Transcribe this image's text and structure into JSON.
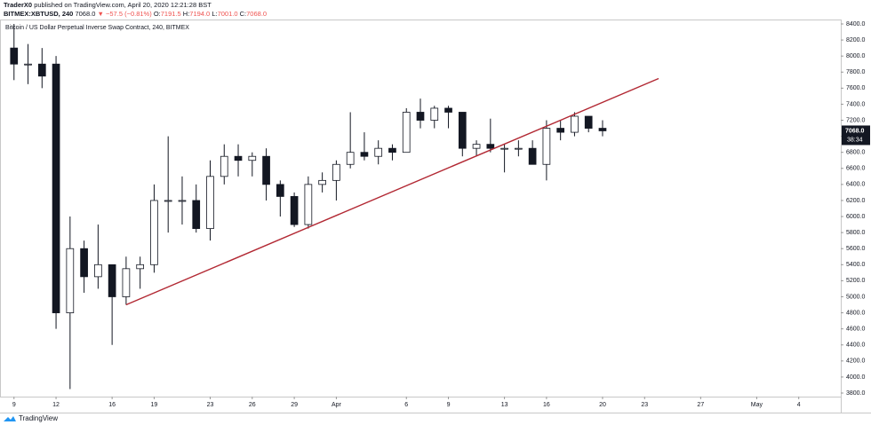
{
  "header": {
    "author": "TraderX0",
    "published": "published on TradingView.com, April 20, 2020 12:21:28 BST",
    "symbol": "BITMEX:XBTUSD, 240",
    "last": "7068.0",
    "change": "▼ −57.5 (−0.81%)",
    "open_label": "O:",
    "open": "7191.5",
    "high_label": "H:",
    "high": "7194.0",
    "low_label": "L:",
    "low": "7001.0",
    "close_label": "C:",
    "close": "7068.0"
  },
  "footer": {
    "brand": "TradingView"
  },
  "chart_data": {
    "type": "candlestick",
    "legend_title": "Bitcoin / US Dollar Perpetual Inverse Swap Contract, 240, BITMEX",
    "x": [
      "2020-03-09",
      "2020-03-10",
      "2020-03-11",
      "2020-03-12",
      "2020-03-13",
      "2020-03-14",
      "2020-03-15",
      "2020-03-16",
      "2020-03-17",
      "2020-03-18",
      "2020-03-19",
      "2020-03-20",
      "2020-03-21",
      "2020-03-22",
      "2020-03-23",
      "2020-03-24",
      "2020-03-25",
      "2020-03-26",
      "2020-03-27",
      "2020-03-28",
      "2020-03-29",
      "2020-03-30",
      "2020-03-31",
      "2020-04-01",
      "2020-04-02",
      "2020-04-03",
      "2020-04-04",
      "2020-04-05",
      "2020-04-06",
      "2020-04-07",
      "2020-04-08",
      "2020-04-09",
      "2020-04-10",
      "2020-04-11",
      "2020-04-12",
      "2020-04-13",
      "2020-04-14",
      "2020-04-15",
      "2020-04-16",
      "2020-04-17",
      "2020-04-18",
      "2020-04-19",
      "2020-04-20"
    ],
    "open": [
      8100,
      7900,
      7900,
      7900,
      4800,
      5600,
      5250,
      5400,
      5000,
      5350,
      5400,
      6200,
      6200,
      6200,
      5850,
      6500,
      6750,
      6700,
      6750,
      6400,
      6250,
      5900,
      6400,
      6450,
      6650,
      6800,
      6750,
      6850,
      6800,
      7300,
      7200,
      7350,
      7300,
      6850,
      6900,
      6850,
      6850,
      6850,
      6650,
      7100,
      7050,
      7250,
      7100
    ],
    "high": [
      8400,
      8150,
      8100,
      8000,
      6000,
      5700,
      5900,
      5400,
      5500,
      5500,
      6400,
      7000,
      6500,
      6400,
      6700,
      6900,
      6900,
      6800,
      6850,
      6450,
      6300,
      6500,
      6550,
      6700,
      7300,
      7050,
      6950,
      6900,
      7350,
      7470,
      7380,
      7380,
      7300,
      6950,
      7220,
      6900,
      6950,
      6950,
      7200,
      7200,
      7300,
      7250,
      7200
    ],
    "low": [
      7700,
      7650,
      7600,
      4600,
      3850,
      5050,
      5100,
      4400,
      4900,
      5100,
      5300,
      5800,
      5900,
      5800,
      5700,
      6400,
      6500,
      6500,
      6200,
      6000,
      5870,
      5850,
      6300,
      6200,
      6600,
      6700,
      6650,
      6700,
      6800,
      7100,
      7100,
      7100,
      6750,
      6750,
      6800,
      6550,
      6750,
      6650,
      6450,
      6950,
      7000,
      7050,
      7000
    ],
    "close": [
      7900,
      7900,
      7750,
      4800,
      5600,
      5250,
      5400,
      5000,
      5350,
      5400,
      6200,
      6200,
      6200,
      5850,
      6500,
      6750,
      6700,
      6750,
      6400,
      6250,
      5900,
      6400,
      6450,
      6650,
      6800,
      6750,
      6850,
      6800,
      7300,
      7200,
      7350,
      7300,
      6850,
      6900,
      6850,
      6850,
      6850,
      6650,
      7100,
      7050,
      7250,
      7100,
      7068
    ],
    "up_color": "#ffffff",
    "down_color": "#131722",
    "outline_color": "#131722",
    "trendline": {
      "x": [
        "2020-03-17",
        "2020-04-24"
      ],
      "values": [
        4900,
        7720
      ],
      "color": "#b22833"
    },
    "last_price_label": "7068.0",
    "countdown_label": "38:34",
    "xlim": [
      "2020-03-08",
      "2020-05-07"
    ],
    "xticks": [
      {
        "value": "2020-03-09",
        "label": "9"
      },
      {
        "value": "2020-03-12",
        "label": "12"
      },
      {
        "value": "2020-03-16",
        "label": "16"
      },
      {
        "value": "2020-03-19",
        "label": "19"
      },
      {
        "value": "2020-03-23",
        "label": "23"
      },
      {
        "value": "2020-03-26",
        "label": "26"
      },
      {
        "value": "2020-03-29",
        "label": "29"
      },
      {
        "value": "2020-04-01",
        "label": "Apr"
      },
      {
        "value": "2020-04-06",
        "label": "6"
      },
      {
        "value": "2020-04-09",
        "label": "9"
      },
      {
        "value": "2020-04-13",
        "label": "13"
      },
      {
        "value": "2020-04-16",
        "label": "16"
      },
      {
        "value": "2020-04-20",
        "label": "20"
      },
      {
        "value": "2020-04-23",
        "label": "23"
      },
      {
        "value": "2020-04-27",
        "label": "27"
      },
      {
        "value": "2020-05-01",
        "label": "May"
      },
      {
        "value": "2020-05-04",
        "label": "4"
      }
    ],
    "ylim": [
      3800,
      8400
    ],
    "yticks": [
      {
        "value": 3800,
        "label": "3800.0"
      },
      {
        "value": 4000,
        "label": "4000.0"
      },
      {
        "value": 4200,
        "label": "4200.0"
      },
      {
        "value": 4400,
        "label": "4400.0"
      },
      {
        "value": 4600,
        "label": "4600.0"
      },
      {
        "value": 4800,
        "label": "4800.0"
      },
      {
        "value": 5000,
        "label": "5000.0"
      },
      {
        "value": 5200,
        "label": "5200.0"
      },
      {
        "value": 5400,
        "label": "5400.0"
      },
      {
        "value": 5600,
        "label": "5600.0"
      },
      {
        "value": 5800,
        "label": "5800.0"
      },
      {
        "value": 6000,
        "label": "6000.0"
      },
      {
        "value": 6200,
        "label": "6200.0"
      },
      {
        "value": 6400,
        "label": "6400.0"
      },
      {
        "value": 6600,
        "label": "6600.0"
      },
      {
        "value": 6800,
        "label": "6800.0"
      },
      {
        "value": 7000,
        "label": "7000.0"
      },
      {
        "value": 7200,
        "label": "7200.0"
      },
      {
        "value": 7400,
        "label": "7400.0"
      },
      {
        "value": 7600,
        "label": "7600.0"
      },
      {
        "value": 7800,
        "label": "7800.0"
      },
      {
        "value": 8000,
        "label": "8000.0"
      },
      {
        "value": 8200,
        "label": "8200.0"
      },
      {
        "value": 8400,
        "label": "8400.0"
      }
    ]
  }
}
